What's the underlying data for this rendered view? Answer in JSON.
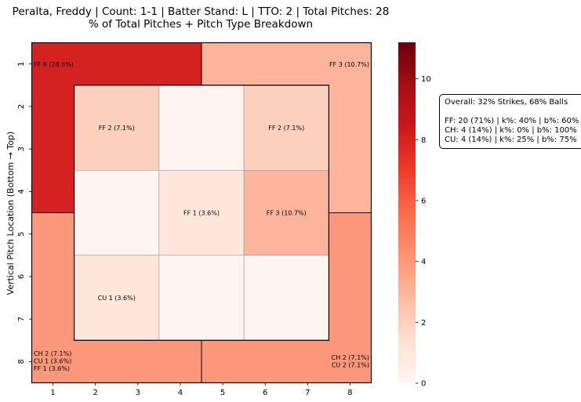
{
  "chart_data": {
    "type": "heatmap",
    "title": "Peralta, Freddy | Count: 1-1 | Batter Stand: L | TTO: 2 | Total Pitches: 28",
    "subtitle": "% of Total Pitches + Pitch Type Breakdown",
    "xlabel": "",
    "ylabel": "Vertical Pitch Location (Bottom → Top)",
    "x_ticks": [
      "1",
      "2",
      "3",
      "4",
      "5",
      "6",
      "7",
      "8"
    ],
    "y_ticks": [
      "1",
      "2",
      "3",
      "4",
      "5",
      "6",
      "7",
      "8"
    ],
    "colorbar": {
      "colormap": "Reds",
      "min": 0,
      "max": 11.2,
      "ticks": [
        "0",
        "2",
        "4",
        "6",
        "8",
        "10"
      ],
      "tick_values": [
        0,
        2,
        4,
        6,
        8,
        10
      ]
    },
    "zones": [
      {
        "id": "outer-top-left",
        "value": 8,
        "labels": [
          "FF 8 (28.6%)"
        ]
      },
      {
        "id": "outer-top-right",
        "value": 3,
        "labels": [
          "FF 3 (10.7%)"
        ]
      },
      {
        "id": "outer-bottom-left",
        "value": 4,
        "labels": [
          "CH 2 (7.1%)",
          "CU 1 (3.6%)",
          "FF 1 (3.6%)"
        ]
      },
      {
        "id": "outer-bottom-right",
        "value": 4,
        "labels": [
          "CH 2 (7.1%)",
          "CU 2 (7.1%)"
        ]
      },
      {
        "id": "inner-1-1",
        "value": 2,
        "labels": [
          "FF 2 (7.1%)"
        ]
      },
      {
        "id": "inner-1-2",
        "value": 0,
        "labels": []
      },
      {
        "id": "inner-1-3",
        "value": 2,
        "labels": [
          "FF 2 (7.1%)"
        ]
      },
      {
        "id": "inner-2-1",
        "value": 0,
        "labels": []
      },
      {
        "id": "inner-2-2",
        "value": 1,
        "labels": [
          "FF 1 (3.6%)"
        ]
      },
      {
        "id": "inner-2-3",
        "value": 3,
        "labels": [
          "FF 3 (10.7%)"
        ]
      },
      {
        "id": "inner-3-1",
        "value": 1,
        "labels": [
          "CU 1 (3.6%)"
        ]
      },
      {
        "id": "inner-3-2",
        "value": 0,
        "labels": []
      },
      {
        "id": "inner-3-3",
        "value": 0,
        "labels": []
      }
    ]
  },
  "summary": {
    "overall": "Overall: 32% Strikes, 68% Balls",
    "lines": [
      "FF: 20 (71%) | k%: 40% | b%: 60%",
      "CH: 4 (14%) | k%: 0% | b%: 100%",
      "CU: 4 (14%) | k%: 25% | b%: 75%"
    ]
  },
  "colors": {
    "low": "#fff5f0",
    "high": "#67000d"
  }
}
